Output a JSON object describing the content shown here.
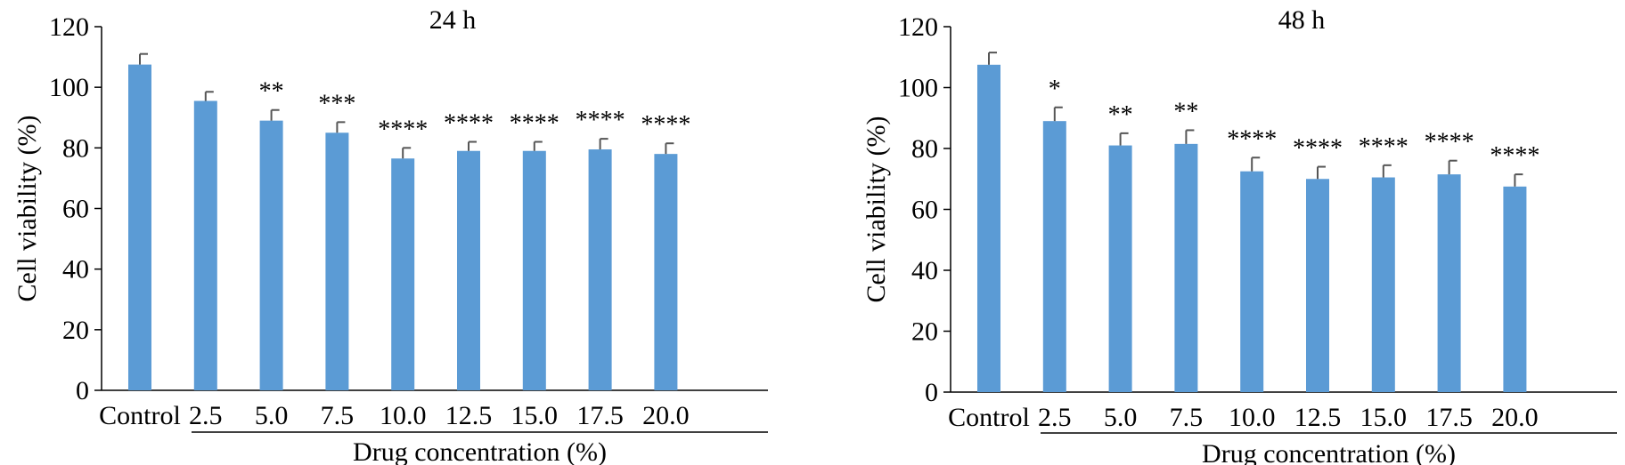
{
  "chart_data": [
    {
      "type": "bar",
      "title": "24 h",
      "xlabel": "Drug concentration (%)",
      "ylabel": "Cell viability (%)",
      "ylim": [
        0,
        120
      ],
      "yticks": [
        "0",
        "20",
        "40",
        "60",
        "80",
        "100",
        "120"
      ],
      "categories": [
        "Control",
        "2.5",
        "5.0",
        "7.5",
        "10.0",
        "12.5",
        "15.0",
        "17.5",
        "20.0"
      ],
      "values": [
        107.5,
        95.5,
        89,
        85,
        76.5,
        79,
        79,
        79.5,
        78
      ],
      "errors": [
        3.5,
        3,
        3.5,
        3.5,
        3.5,
        3,
        3,
        3.5,
        3.5
      ],
      "significance": [
        "",
        "",
        "**",
        "***",
        "****",
        "****",
        "****",
        "****",
        "****"
      ],
      "bar_color": "#5b9bd5",
      "grid": false
    },
    {
      "type": "bar",
      "title": "48 h",
      "xlabel": "Drug concentration (%)",
      "ylabel": "Cell viability (%)",
      "ylim": [
        0,
        120
      ],
      "yticks": [
        "0",
        "20",
        "40",
        "60",
        "80",
        "100",
        "120"
      ],
      "categories": [
        "Control",
        "2.5",
        "5.0",
        "7.5",
        "10.0",
        "12.5",
        "15.0",
        "17.5",
        "20.0"
      ],
      "values": [
        107.5,
        89,
        81,
        81.5,
        72.5,
        70,
        70.5,
        71.5,
        67.5
      ],
      "errors": [
        4,
        4.5,
        4,
        4.5,
        4.5,
        4,
        4,
        4.5,
        4
      ],
      "significance": [
        "",
        "*",
        "**",
        "**",
        "****",
        "****",
        "****",
        "****",
        "****"
      ],
      "bar_color": "#5b9bd5",
      "grid": false
    }
  ]
}
